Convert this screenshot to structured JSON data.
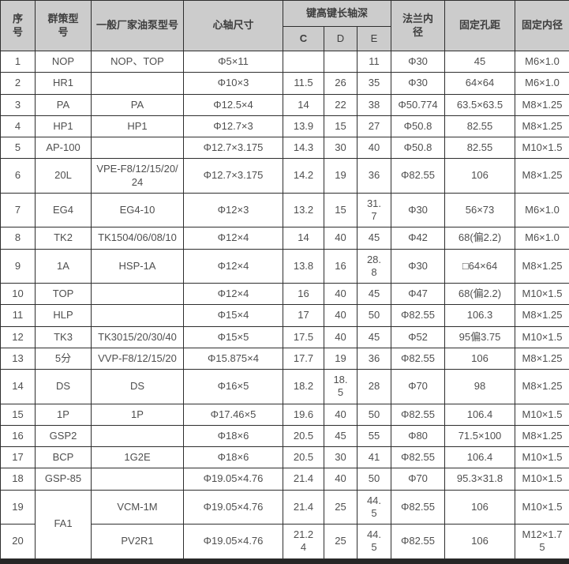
{
  "table": {
    "header": {
      "serial": "序\n号",
      "model": "群策型\n号",
      "pump": "一般厂家油泵型号",
      "spindle": "心轴尺寸",
      "key_group": "键高键长轴深",
      "sub_c": "C",
      "sub_d": "D",
      "sub_e": "E",
      "flange": "法兰内\n径",
      "pitch": "固定孔距",
      "fixed_id": "固定内径"
    },
    "rows": [
      {
        "no": "1",
        "model": "NOP",
        "pump": "NOP、TOP",
        "spindle": "Φ5×11",
        "c": "",
        "d": "",
        "e": "11",
        "flange": "Φ30",
        "pitch": "45",
        "fid": "M6×1.0"
      },
      {
        "no": "2",
        "model": "HR1",
        "pump": "",
        "spindle": "Φ10×3",
        "c": "11.5",
        "d": "26",
        "e": "35",
        "flange": "Φ30",
        "pitch": "64×64",
        "fid": "M6×1.0"
      },
      {
        "no": "3",
        "model": "PA",
        "pump": "PA",
        "spindle": "Φ12.5×4",
        "c": "14",
        "d": "22",
        "e": "38",
        "flange": "Φ50.774",
        "pitch": "63.5×63.5",
        "fid": "M8×1.25"
      },
      {
        "no": "4",
        "model": "HP1",
        "pump": "HP1",
        "spindle": "Φ12.7×3",
        "c": "13.9",
        "d": "15",
        "e": "27",
        "flange": "Φ50.8",
        "pitch": "82.55",
        "fid": "M8×1.25"
      },
      {
        "no": "5",
        "model": "AP-100",
        "pump": "",
        "spindle": "Φ12.7×3.175",
        "c": "14.3",
        "d": "30",
        "e": "40",
        "flange": "Φ50.8",
        "pitch": "82.55",
        "fid": "M10×1.5"
      },
      {
        "no": "6",
        "model": "20L",
        "pump": "VPE-F8/12/15/20/\n24",
        "spindle": "Φ12.7×3.175",
        "c": "14.2",
        "d": "19",
        "e": "36",
        "flange": "Φ82.55",
        "pitch": "106",
        "fid": "M8×1.25"
      },
      {
        "no": "7",
        "model": "EG4",
        "pump": "EG4-10",
        "spindle": "Φ12×3",
        "c": "13.2",
        "d": "15",
        "e": "31.\n7",
        "flange": "Φ30",
        "pitch": "56×73",
        "fid": "M6×1.0"
      },
      {
        "no": "8",
        "model": "TK2",
        "pump": "TK1504/06/08/10",
        "spindle": "Φ12×4",
        "c": "14",
        "d": "40",
        "e": "45",
        "flange": "Φ42",
        "pitch": "68(偏2.2)",
        "fid": "M6×1.0"
      },
      {
        "no": "9",
        "model": "1A",
        "pump": "HSP-1A",
        "spindle": "Φ12×4",
        "c": "13.8",
        "d": "16",
        "e": "28.\n8",
        "flange": "Φ30",
        "pitch": "□64×64",
        "fid": "M8×1.25"
      },
      {
        "no": "10",
        "model": "TOP",
        "pump": "",
        "spindle": "Φ12×4",
        "c": "16",
        "d": "40",
        "e": "45",
        "flange": "Φ47",
        "pitch": "68(偏2.2)",
        "fid": "M10×1.5"
      },
      {
        "no": "11",
        "model": "HLP",
        "pump": "",
        "spindle": "Φ15×4",
        "c": "17",
        "d": "40",
        "e": "50",
        "flange": "Φ82.55",
        "pitch": "106.3",
        "fid": "M8×1.25"
      },
      {
        "no": "12",
        "model": "TK3",
        "pump": "TK3015/20/30/40",
        "spindle": "Φ15×5",
        "c": "17.5",
        "d": "40",
        "e": "45",
        "flange": "Φ52",
        "pitch": "95偏3.75",
        "fid": "M10×1.5"
      },
      {
        "no": "13",
        "model": "5分",
        "pump": "VVP-F8/12/15/20",
        "spindle": "Φ15.875×4",
        "c": "17.7",
        "d": "19",
        "e": "36",
        "flange": "Φ82.55",
        "pitch": "106",
        "fid": "M8×1.25"
      },
      {
        "no": "14",
        "model": "DS",
        "pump": "DS",
        "spindle": "Φ16×5",
        "c": "18.2",
        "d": "18.\n5",
        "e": "28",
        "flange": "Φ70",
        "pitch": "98",
        "fid": "M8×1.25"
      },
      {
        "no": "15",
        "model": "1P",
        "pump": "1P",
        "spindle": "Φ17.46×5",
        "c": "19.6",
        "d": "40",
        "e": "50",
        "flange": "Φ82.55",
        "pitch": "106.4",
        "fid": "M10×1.5"
      },
      {
        "no": "16",
        "model": "GSP2",
        "pump": "",
        "spindle": "Φ18×6",
        "c": "20.5",
        "d": "45",
        "e": "55",
        "flange": "Φ80",
        "pitch": "71.5×100",
        "fid": "M8×1.25"
      },
      {
        "no": "17",
        "model": "BCP",
        "pump": "1G2E",
        "spindle": "Φ18×6",
        "c": "20.5",
        "d": "30",
        "e": "41",
        "flange": "Φ82.55",
        "pitch": "106.4",
        "fid": "M10×1.5"
      },
      {
        "no": "18",
        "model": "GSP-85",
        "pump": "",
        "spindle": "Φ19.05×4.76",
        "c": "21.4",
        "d": "40",
        "e": "50",
        "flange": "Φ70",
        "pitch": "95.3×31.8",
        "fid": "M10×1.5"
      },
      {
        "no": "19",
        "model": "FA1",
        "model_rowspan": 2,
        "pump": "VCM-1M",
        "spindle": "Φ19.05×4.76",
        "c": "21.4",
        "d": "25",
        "e": "44.\n5",
        "flange": "Φ82.55",
        "pitch": "106",
        "fid": "M10×1.5"
      },
      {
        "no": "20",
        "model": null,
        "pump": "PV2R1",
        "spindle": "Φ19.05×4.76",
        "c": "21.2\n4",
        "d": "25",
        "e": "44.\n5",
        "flange": "Φ82.55",
        "pitch": "106",
        "fid": "M12×1.7\n5"
      }
    ]
  },
  "colors": {
    "header_bg": "#cccccc",
    "border": "#2e2e2e",
    "text": "#4f4f4f",
    "row_bg": "#ffffff",
    "bottom_bar": "#262626"
  }
}
